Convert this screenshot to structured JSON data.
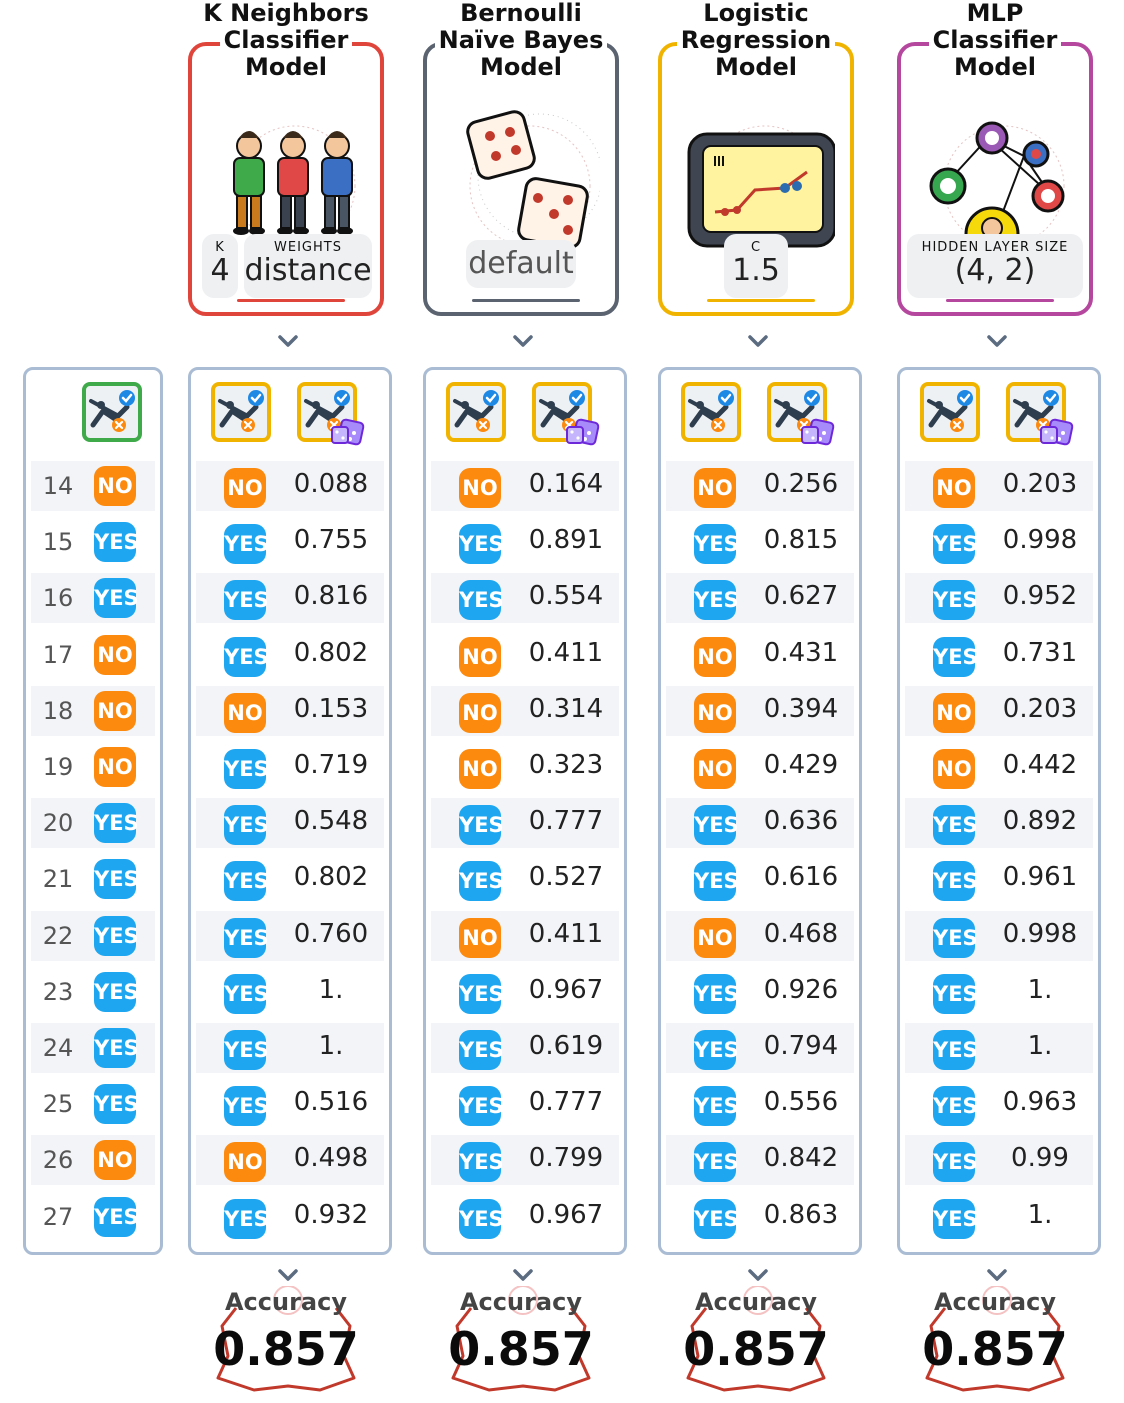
{
  "models": [
    {
      "title_lines": [
        "K Neighbors",
        "Classifier",
        "Model"
      ],
      "color": "#e0453c",
      "params": [
        {
          "label": "K",
          "value": "4"
        },
        {
          "label": "WEIGHTS",
          "value": "distance"
        }
      ],
      "icon": "people-icon"
    },
    {
      "title_lines": [
        "Bernoulli",
        "Naïve Bayes",
        "Model"
      ],
      "color": "#5b6370",
      "params": [
        {
          "label": "",
          "value": "default"
        }
      ],
      "icon": "dice-icon"
    },
    {
      "title_lines": [
        "Logistic",
        "Regression",
        "Model"
      ],
      "color": "#f0b400",
      "params": [
        {
          "label": "C",
          "value": "1.5"
        }
      ],
      "icon": "tablet-chart-icon"
    },
    {
      "title_lines": [
        "MLP",
        "Classifier",
        "Model"
      ],
      "color": "#b5479e",
      "params": [
        {
          "label": "HIDDEN LAYER SIZE",
          "value": "(4, 2)"
        }
      ],
      "icon": "neural-network-icon"
    }
  ],
  "rows": [
    14,
    15,
    16,
    17,
    18,
    19,
    20,
    21,
    22,
    23,
    24,
    25,
    26,
    27
  ],
  "actual": [
    "NO",
    "YES",
    "YES",
    "NO",
    "NO",
    "NO",
    "YES",
    "YES",
    "YES",
    "YES",
    "YES",
    "YES",
    "NO",
    "YES"
  ],
  "predictions": [
    {
      "labels": [
        "NO",
        "YES",
        "YES",
        "YES",
        "NO",
        "YES",
        "YES",
        "YES",
        "YES",
        "YES",
        "YES",
        "YES",
        "NO",
        "YES"
      ],
      "probs": [
        "0.088",
        "0.755",
        "0.816",
        "0.802",
        "0.153",
        "0.719",
        "0.548",
        "0.802",
        "0.760",
        "1.",
        "1.",
        "0.516",
        "0.498",
        "0.932"
      ]
    },
    {
      "labels": [
        "NO",
        "YES",
        "YES",
        "NO",
        "NO",
        "NO",
        "YES",
        "YES",
        "NO",
        "YES",
        "YES",
        "YES",
        "YES",
        "YES"
      ],
      "probs": [
        "0.164",
        "0.891",
        "0.554",
        "0.411",
        "0.314",
        "0.323",
        "0.777",
        "0.527",
        "0.411",
        "0.967",
        "0.619",
        "0.777",
        "0.799",
        "0.967"
      ]
    },
    {
      "labels": [
        "NO",
        "YES",
        "YES",
        "NO",
        "NO",
        "NO",
        "YES",
        "YES",
        "NO",
        "YES",
        "YES",
        "YES",
        "YES",
        "YES"
      ],
      "probs": [
        "0.256",
        "0.815",
        "0.627",
        "0.431",
        "0.394",
        "0.429",
        "0.636",
        "0.616",
        "0.468",
        "0.926",
        "0.794",
        "0.556",
        "0.842",
        "0.863"
      ]
    },
    {
      "labels": [
        "NO",
        "YES",
        "YES",
        "YES",
        "NO",
        "NO",
        "YES",
        "YES",
        "YES",
        "YES",
        "YES",
        "YES",
        "YES",
        "YES"
      ],
      "probs": [
        "0.203",
        "0.998",
        "0.952",
        "0.731",
        "0.203",
        "0.442",
        "0.892",
        "0.961",
        "0.998",
        "1.",
        "1.",
        "0.963",
        "0.99",
        "1."
      ]
    }
  ],
  "accuracy": {
    "label": "Accuracy",
    "values": [
      "0.857",
      "0.857",
      "0.857",
      "0.857"
    ]
  },
  "colors": {
    "yes": "#1ea7f0",
    "no": "#fb8a0f",
    "table_border": "#a9bcd3",
    "stripe": "#f2f4f7"
  }
}
